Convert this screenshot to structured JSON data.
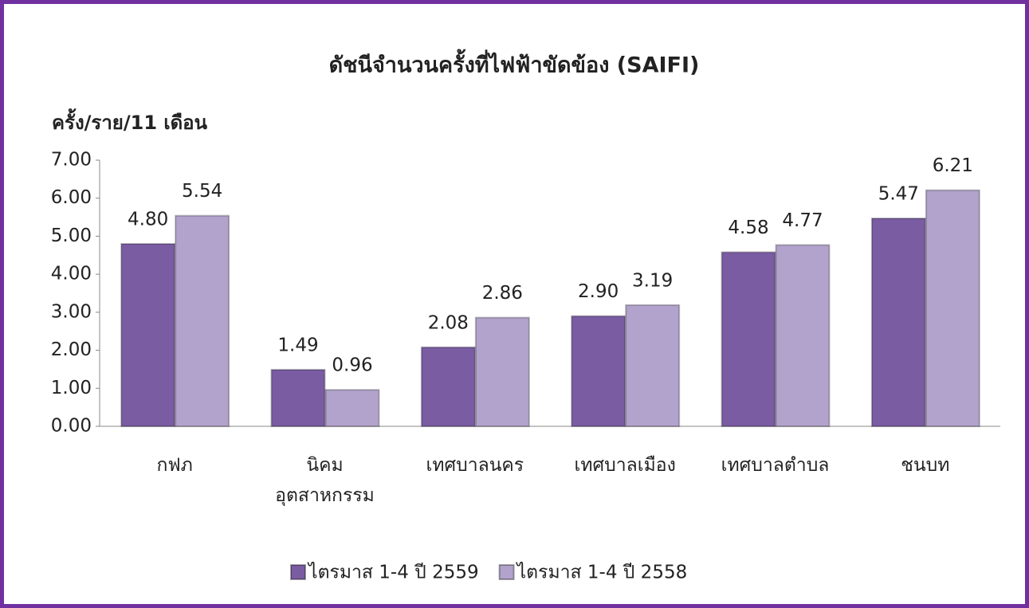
{
  "chart_data": {
    "type": "bar",
    "title": "ดัชนีจำนวนครั้งที่ไฟฟ้าขัดข้อง (SAIFI)",
    "y_label": "ครั้ง/ราย/11 เดือน",
    "categories": [
      "กฟภ",
      "นิคม\nอุตสาหกรรม",
      "เทศบาลนคร",
      "เทศบาลเมือง",
      "เทศบาลตำบล",
      "ชนบท"
    ],
    "series": [
      {
        "name": "ไตรมาส 1-4 ปี 2559",
        "color": "#7a5ca3",
        "values": [
          4.8,
          1.49,
          2.08,
          2.9,
          4.58,
          5.47
        ],
        "value_labels": [
          "4.80",
          "1.49",
          "2.08",
          "2.90",
          "4.58",
          "5.47"
        ]
      },
      {
        "name": "ไตรมาส 1-4 ปี 2558",
        "color": "#b2a3cc",
        "values": [
          5.54,
          0.96,
          2.86,
          3.19,
          4.77,
          6.21
        ],
        "value_labels": [
          "5.54",
          "0.96",
          "2.86",
          "3.19",
          "4.77",
          "6.21"
        ]
      }
    ],
    "ylim": [
      0,
      7
    ],
    "yticks": [
      {
        "value": 0,
        "label": "0.00"
      },
      {
        "value": 1,
        "label": "1.00"
      },
      {
        "value": 2,
        "label": "2.00"
      },
      {
        "value": 3,
        "label": "3.00"
      },
      {
        "value": 4,
        "label": "4.00"
      },
      {
        "value": 5,
        "label": "5.00"
      },
      {
        "value": 6,
        "label": "6.00"
      },
      {
        "value": 7,
        "label": "7.00"
      }
    ],
    "grid": false,
    "legend": "bottom"
  }
}
